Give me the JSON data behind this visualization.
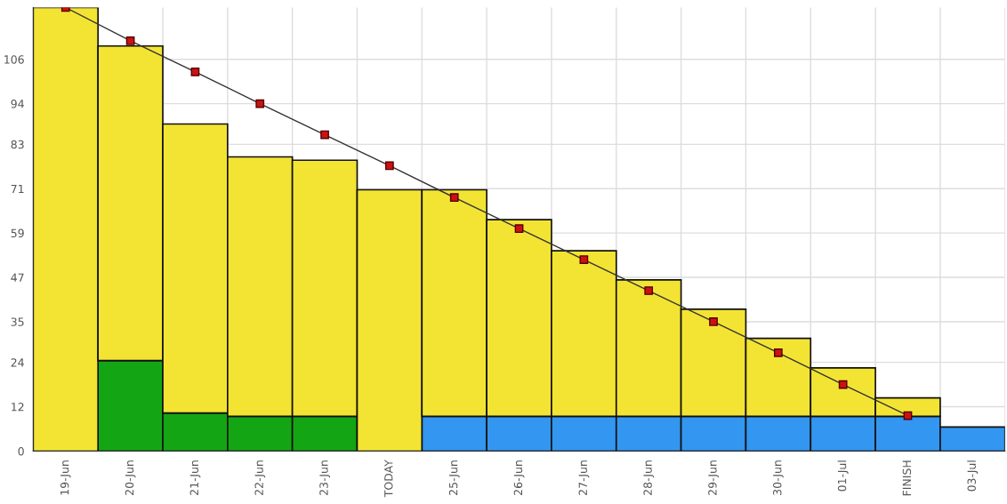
{
  "chart_data": {
    "type": "bar",
    "stacked": true,
    "categories": [
      "19-Jun",
      "20-Jun",
      "21-Jun",
      "22-Jun",
      "23-Jun",
      "TODAY",
      "25-Jun",
      "26-Jun",
      "27-Jun",
      "28-Jun",
      "29-Jun",
      "30-Jun",
      "01-Jul",
      "FINISH",
      "03-Jul"
    ],
    "series": [
      {
        "color": "#14a514",
        "values": [
          null,
          24.5,
          10.3,
          9.4,
          9.4,
          null,
          null,
          null,
          null,
          null,
          null,
          null,
          null,
          null,
          null
        ]
      },
      {
        "color": "#3396f0",
        "values": [
          null,
          null,
          null,
          null,
          null,
          null,
          9.4,
          9.4,
          9.4,
          9.4,
          9.4,
          9.4,
          9.4,
          9.4,
          6.5
        ]
      },
      {
        "color": "#f3e434",
        "values": [
          120,
          85.1,
          78.2,
          70.2,
          69.3,
          70.7,
          61.3,
          53.2,
          44.8,
          36.9,
          29,
          21.1,
          13.1,
          5,
          null
        ]
      },
      {
        "type": "line",
        "color": "#333333",
        "marker": "square",
        "values": [
          120,
          111,
          102.6,
          94,
          85.6,
          77.2,
          68.6,
          60.2,
          51.8,
          43.4,
          35,
          26.6,
          18,
          9.6,
          null
        ]
      }
    ],
    "ylim": [
      0,
      120
    ],
    "yticks": [
      0,
      12,
      24,
      35,
      47,
      59,
      71,
      83,
      94,
      106
    ],
    "grid": true,
    "legend": false
  }
}
